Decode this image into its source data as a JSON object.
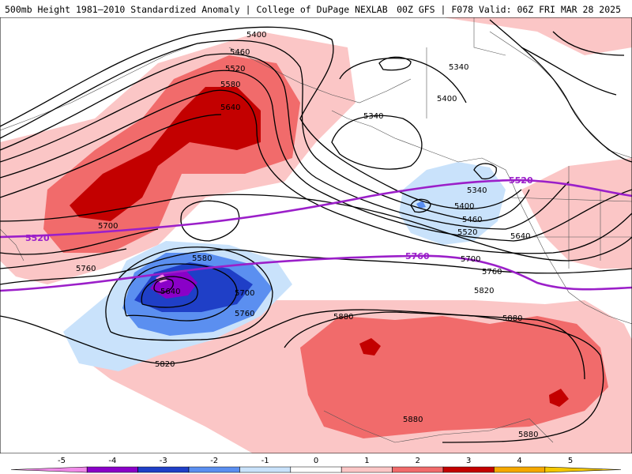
{
  "header": {
    "title_left": "500mb Height 1981–2010 Standardized Anomaly | College of DuPage NEXLAB",
    "title_right": "00Z GFS | F078 Valid: 06Z FRI MAR 28 2025"
  },
  "map": {
    "height_contour_labels": [
      "5400",
      "5460",
      "5520",
      "5580",
      "5640",
      "5700",
      "5760",
      "5340",
      "5340",
      "5400",
      "5340",
      "5400",
      "5460",
      "5520",
      "5640",
      "5700",
      "5760",
      "5820",
      "5580",
      "5640",
      "5700",
      "5760",
      "5820",
      "5880",
      "5880",
      "5880",
      "5880",
      "5760",
      "5700"
    ],
    "highlight_contour_labels": [
      "5520",
      "5520",
      "5760"
    ],
    "colors": {
      "anomaly_pos_1": "#fbc6c6",
      "anomaly_pos_2": "#f16b6b",
      "anomaly_pos_3": "#c30000",
      "anomaly_neg_1": "#c9e2fb",
      "anomaly_neg_2": "#5b8ff0",
      "anomaly_neg_3": "#1f3fc7",
      "anomaly_neg_4": "#8a00c8",
      "anomaly_neg_5": "#f08ae8",
      "highlight_contour": "#9b1fc9",
      "contour": "#000000"
    }
  },
  "colorbar": {
    "ticks": [
      "-5",
      "-4",
      "-3",
      "-2",
      "-1",
      "0",
      "1",
      "2",
      "3",
      "4",
      "5"
    ],
    "colors": [
      "#f08ae8",
      "#8a00c8",
      "#1f3fc7",
      "#5b8ff0",
      "#c9e2fb",
      "#ffffff",
      "#fbc6c6",
      "#f16b6b",
      "#c30000",
      "#f5a800",
      "#f5c800"
    ]
  }
}
